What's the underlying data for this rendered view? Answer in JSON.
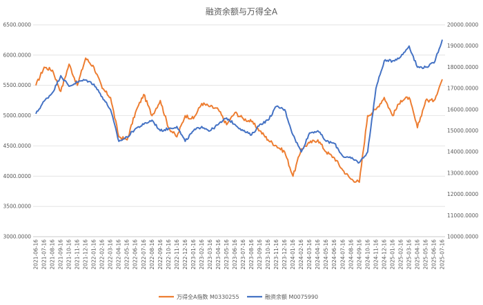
{
  "chart_data": {
    "type": "line",
    "title": "融资余额与万得全A",
    "x_labels": [
      "2021-06-16",
      "2021-07-16",
      "2021-08-16",
      "2021-09-16",
      "2021-10-16",
      "2021-11-16",
      "2021-12-16",
      "2022-01-16",
      "2022-02-16",
      "2022-03-16",
      "2022-04-16",
      "2022-05-16",
      "2022-06-16",
      "2022-07-16",
      "2022-08-16",
      "2022-09-16",
      "2022-10-16",
      "2022-11-16",
      "2022-12-16",
      "2023-01-16",
      "2023-02-16",
      "2023-03-16",
      "2023-04-16",
      "2023-05-16",
      "2023-06-16",
      "2023-07-16",
      "2023-08-16",
      "2023-09-16",
      "2023-10-16",
      "2023-11-16",
      "2023-12-16",
      "2024-01-16",
      "2024-02-16",
      "2024-03-16",
      "2024-04-16",
      "2024-05-16",
      "2024-06-16",
      "2024-07-16",
      "2024-08-16",
      "2024-09-16",
      "2024-10-16",
      "2024-11-16",
      "2024-12-16",
      "2025-01-16",
      "2025-02-16",
      "2025-03-16",
      "2025-04-16",
      "2025-05-16",
      "2025-06-16",
      "2025-07-16"
    ],
    "y_left": {
      "ticks": [
        "3000.0000",
        "3500.0000",
        "4000.0000",
        "4500.0000",
        "5000.0000",
        "5500.0000",
        "6000.0000",
        "6500.0000"
      ],
      "min": 3000,
      "max": 6500
    },
    "y_right": {
      "ticks": [
        "10000.0000",
        "11000.0000",
        "12000.0000",
        "13000.0000",
        "14000.0000",
        "15000.0000",
        "16000.0000",
        "17000.0000",
        "18000.0000",
        "19000.0000",
        "20000.0000"
      ],
      "min": 10000,
      "max": 20000
    },
    "series": [
      {
        "name": "万得全A指数 M0330255",
        "axis": "left",
        "color": "#ED7D31",
        "values": [
          5500,
          5800,
          5750,
          5400,
          5850,
          5500,
          5950,
          5800,
          5450,
          5300,
          4650,
          4600,
          5050,
          5350,
          5000,
          5250,
          4800,
          4650,
          5000,
          4950,
          5200,
          5150,
          5100,
          4850,
          5050,
          4950,
          4900,
          4750,
          4600,
          4500,
          4400,
          4000,
          4450,
          4550,
          4600,
          4400,
          4300,
          4100,
          3950,
          3900,
          5000,
          5100,
          5300,
          5000,
          5250,
          5300,
          4800,
          5250,
          5250,
          5600
        ]
      },
      {
        "name": "融资余额 M0075990",
        "axis": "right",
        "color": "#4472C4",
        "values": [
          15800,
          16400,
          16800,
          17600,
          17100,
          17300,
          17400,
          17200,
          16600,
          16000,
          14500,
          14700,
          15100,
          15300,
          15500,
          15000,
          15100,
          15200,
          14500,
          15000,
          15200,
          15000,
          15300,
          15600,
          15300,
          15000,
          14800,
          15300,
          15500,
          16150,
          16000,
          14800,
          14000,
          14900,
          15000,
          14500,
          14400,
          13800,
          13700,
          13500,
          14000,
          17000,
          18300,
          18300,
          18500,
          19000,
          18000,
          18000,
          18200,
          19300
        ]
      }
    ],
    "legend_position": "bottom",
    "grid": true
  }
}
